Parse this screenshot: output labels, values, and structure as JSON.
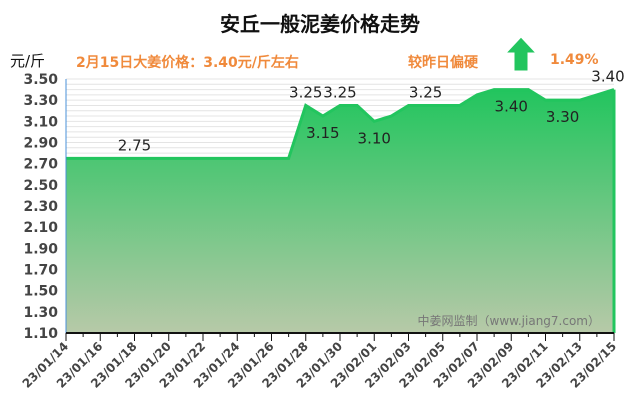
{
  "header": {
    "title": "安丘一般泥姜价格走势",
    "unit": "元/斤",
    "price_note": "2月15日大姜价格：3.40元/斤左右",
    "compare_label": "较昨日偏硬",
    "change_percent": "1.49%",
    "trend_icon": "arrow-up-icon",
    "trend_color": "#22c55e"
  },
  "watermark": "中姜网监制（www.jiang7.com）",
  "chart_data": {
    "type": "area",
    "title": "安丘一般泥姜价格走势",
    "ylabel": "元/斤",
    "ylim": [
      1.1,
      3.5
    ],
    "yticks": [
      "3.50",
      "3.30",
      "3.10",
      "2.90",
      "2.70",
      "2.50",
      "2.30",
      "2.10",
      "1.90",
      "1.70",
      "1.50",
      "1.30",
      "1.10"
    ],
    "xticks": [
      "23/01/14",
      "23/01/16",
      "23/01/18",
      "23/01/20",
      "23/01/22",
      "23/01/24",
      "23/01/26",
      "23/01/28",
      "23/01/30",
      "23/02/01",
      "23/02/03",
      "23/02/05",
      "23/02/07",
      "23/02/09",
      "23/02/11",
      "23/02/13",
      "23/02/15"
    ],
    "x": [
      "23/01/14",
      "23/01/15",
      "23/01/16",
      "23/01/17",
      "23/01/18",
      "23/01/19",
      "23/01/20",
      "23/01/21",
      "23/01/22",
      "23/01/23",
      "23/01/24",
      "23/01/25",
      "23/01/26",
      "23/01/27",
      "23/01/28",
      "23/01/29",
      "23/01/30",
      "23/01/31",
      "23/02/01",
      "23/02/02",
      "23/02/03",
      "23/02/04",
      "23/02/05",
      "23/02/06",
      "23/02/07",
      "23/02/08",
      "23/02/09",
      "23/02/10",
      "23/02/11",
      "23/02/12",
      "23/02/13",
      "23/02/14",
      "23/02/15"
    ],
    "values": [
      2.75,
      2.75,
      2.75,
      2.75,
      2.75,
      2.75,
      2.75,
      2.75,
      2.75,
      2.75,
      2.75,
      2.75,
      2.75,
      2.75,
      3.25,
      3.15,
      3.25,
      3.25,
      3.1,
      3.15,
      3.25,
      3.25,
      3.25,
      3.25,
      3.35,
      3.4,
      3.4,
      3.4,
      3.3,
      3.3,
      3.3,
      3.35,
      3.4
    ],
    "data_labels": [
      {
        "date": "23/01/18",
        "text": "2.75"
      },
      {
        "date": "23/01/28",
        "text": "3.25"
      },
      {
        "date": "23/01/29",
        "text": "3.15"
      },
      {
        "date": "23/01/30",
        "text": "3.25"
      },
      {
        "date": "23/02/01",
        "text": "3.10"
      },
      {
        "date": "23/02/04",
        "text": "3.25"
      },
      {
        "date": "23/02/09",
        "text": "3.40"
      },
      {
        "date": "23/02/12",
        "text": "3.30"
      },
      {
        "date": "23/02/15",
        "text": "3.40"
      }
    ],
    "grid": true,
    "colors": {
      "line": "#22c55e",
      "fill_top": "#22c55e",
      "fill_bottom": "#b7c9a8",
      "label": "#222222",
      "tick": "#444444"
    }
  }
}
